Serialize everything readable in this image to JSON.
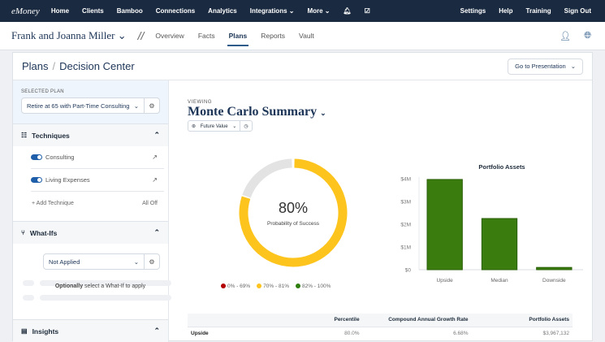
{
  "topnav": {
    "logo": "eMoney",
    "items": [
      "Home",
      "Clients",
      "Bamboo",
      "Connections",
      "Analytics",
      "Integrations ⌄",
      "More ⌄"
    ],
    "right": [
      "Settings",
      "Help",
      "Training",
      "Sign Out"
    ]
  },
  "subnav": {
    "client": "Frank and Joanna Miller ⌄",
    "separator": "//",
    "tabs": [
      "Overview",
      "Facts",
      "Plans",
      "Reports",
      "Vault"
    ],
    "active_tab": "Plans"
  },
  "header": {
    "crumb_root": "Plans",
    "crumb_current": "Decision Center",
    "goto": "Go to Presentation"
  },
  "sidebar": {
    "selected_plan_label": "SELECTED PLAN",
    "selected_plan": "Retire at 65 with Part-Time Consulting",
    "techniques": {
      "title": "Techniques",
      "items": [
        {
          "label": "Consulting",
          "on": true
        },
        {
          "label": "Living Expenses",
          "on": true
        }
      ],
      "add": "+ Add Technique",
      "all_off": "All Off"
    },
    "whatifs": {
      "title": "What-Ifs",
      "select": "Not Applied",
      "empty_bold": "Optionally",
      "empty_rest": " select a What-If to apply"
    },
    "insights": {
      "title": "Insights"
    }
  },
  "main": {
    "viewing": "VIEWING",
    "title": "Monte Carlo Summary",
    "future_value": "Future Value",
    "donut": {
      "value": "80%",
      "label": "Probability of Success",
      "fraction": 0.8,
      "color": "#fdc41e",
      "rest_color": "#e3e3e3"
    },
    "legend": [
      {
        "label": "0% - 69%",
        "color": "#b30000"
      },
      {
        "label": "70% - 81%",
        "color": "#fdc41e"
      },
      {
        "label": "82% - 100%",
        "color": "#2e7d0f"
      }
    ],
    "table": {
      "headers": [
        "",
        "Percentile",
        "Compound Annual Growth Rate",
        "Portfolio Assets"
      ],
      "rows": [
        [
          "Upside",
          "80.0%",
          "6.68%",
          "$3,967,132"
        ]
      ]
    }
  },
  "chart_data": {
    "type": "bar",
    "title": "Portfolio Assets",
    "categories": [
      "Upside",
      "Median",
      "Downside"
    ],
    "values": [
      3967132,
      2250000,
      100000
    ],
    "ylim": [
      0,
      4000000
    ],
    "yticks": [
      "$0",
      "$1M",
      "$2M",
      "$3M",
      "$4M"
    ],
    "color": "#3a7d0e",
    "grid": false
  }
}
